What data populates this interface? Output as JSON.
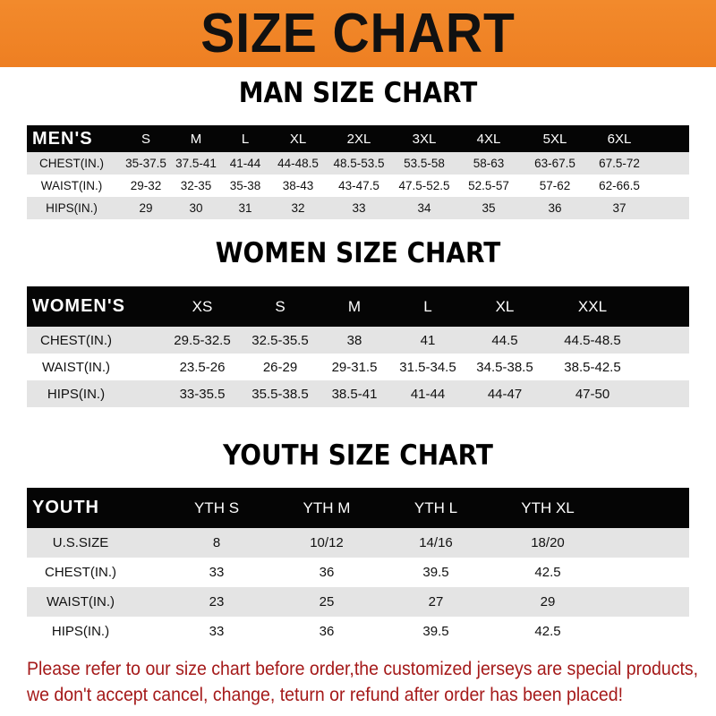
{
  "banner": {
    "title": "SIZE CHART",
    "color": "#f08628"
  },
  "men": {
    "title": "MAN SIZE CHART",
    "header": [
      "MEN'S",
      "S",
      "M",
      "L",
      "XL",
      "2XL",
      "3XL",
      "4XL",
      "5XL",
      "6XL"
    ],
    "rows": [
      [
        "CHEST(IN.)",
        "35-37.5",
        "37.5-41",
        "41-44",
        "44-48.5",
        "48.5-53.5",
        "53.5-58",
        "58-63",
        "63-67.5",
        "67.5-72"
      ],
      [
        "WAIST(IN.)",
        "29-32",
        "32-35",
        "35-38",
        "38-43",
        "43-47.5",
        "47.5-52.5",
        "52.5-57",
        "57-62",
        "62-66.5"
      ],
      [
        "HIPS(IN.)",
        "29",
        "30",
        "31",
        "32",
        "33",
        "34",
        "35",
        "36",
        "37"
      ]
    ]
  },
  "women": {
    "title": "WOMEN SIZE CHART",
    "header": [
      "WOMEN'S",
      "XS",
      "S",
      "M",
      "L",
      "XL",
      "XXL"
    ],
    "rows": [
      [
        "CHEST(IN.)",
        "29.5-32.5",
        "32.5-35.5",
        "38",
        "41",
        "44.5",
        "44.5-48.5"
      ],
      [
        "WAIST(IN.)",
        "23.5-26",
        "26-29",
        "29-31.5",
        "31.5-34.5",
        "34.5-38.5",
        "38.5-42.5"
      ],
      [
        "HIPS(IN.)",
        "33-35.5",
        "35.5-38.5",
        "38.5-41",
        "41-44",
        "44-47",
        "47-50"
      ]
    ]
  },
  "youth": {
    "title": "YOUTH SIZE CHART",
    "header": [
      "YOUTH",
      "YTH S",
      "YTH M",
      "YTH L",
      "YTH XL"
    ],
    "rows": [
      [
        "U.S.SIZE",
        "8",
        "10/12",
        "14/16",
        "18/20"
      ],
      [
        "CHEST(IN.)",
        "33",
        "36",
        "39.5",
        "42.5"
      ],
      [
        "WAIST(IN.)",
        "23",
        "25",
        "27",
        "29"
      ],
      [
        "HIPS(IN.)",
        "33",
        "36",
        "39.5",
        "42.5"
      ]
    ]
  },
  "footer": {
    "line1": "Please refer to our size chart before order,the customized jerseys are special products,",
    "line2": "we don't accept cancel, change, teturn or refund after order has been placed!",
    "color": "#a51a1a"
  }
}
